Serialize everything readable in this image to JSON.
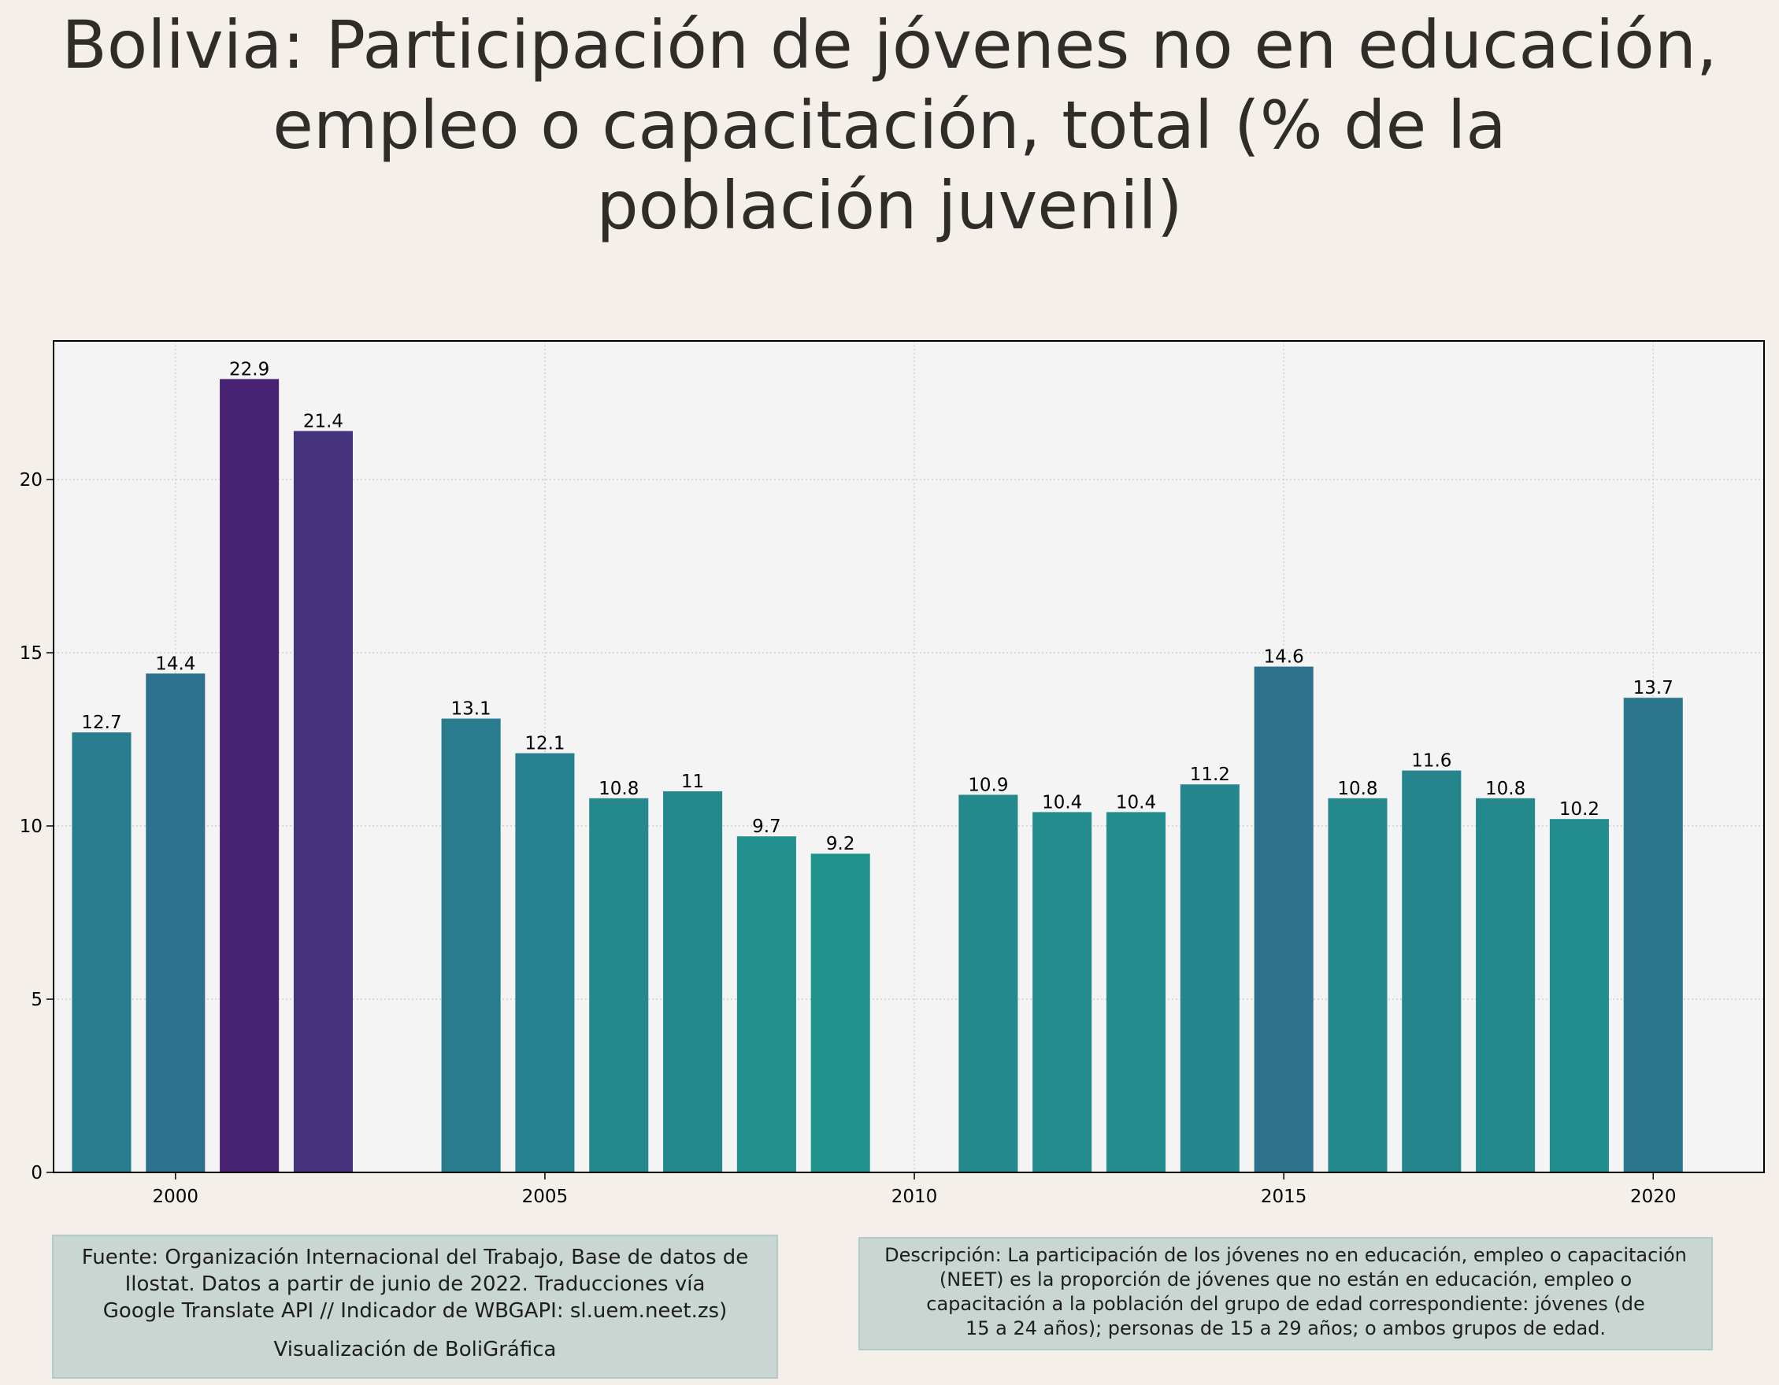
{
  "title_lines": [
    "Bolivia:  Participación de jóvenes no en educación,",
    "empleo o capacitación, total (% de la",
    "población juvenil)"
  ],
  "chart_data": {
    "type": "bar",
    "title": "Bolivia:  Participación de jóvenes no en educación, empleo o capacitación, total (% de la población juvenil)",
    "xlabel": "",
    "ylabel": "",
    "x": [
      1999,
      2000,
      2001,
      2002,
      2004,
      2005,
      2006,
      2007,
      2008,
      2009,
      2011,
      2012,
      2013,
      2014,
      2015,
      2016,
      2017,
      2018,
      2019,
      2020
    ],
    "values": [
      12.7,
      14.4,
      22.9,
      21.4,
      13.1,
      12.1,
      10.8,
      11,
      9.7,
      9.2,
      10.9,
      10.4,
      10.4,
      11.2,
      14.6,
      10.8,
      11.6,
      10.8,
      10.2,
      13.7
    ],
    "value_labels": [
      "12.7",
      "14.4",
      "22.9",
      "21.4",
      "13.1",
      "12.1",
      "10.8",
      "11",
      "9.7",
      "9.2",
      "10.9",
      "10.4",
      "10.4",
      "11.2",
      "14.6",
      "10.8",
      "11.6",
      "10.8",
      "10.2",
      "13.7"
    ],
    "xlim": [
      1998.35,
      2021.5
    ],
    "ylim": [
      0,
      24
    ],
    "x_ticks": [
      2000,
      2005,
      2010,
      2015,
      2020
    ],
    "y_ticks": [
      0,
      5,
      10,
      15,
      20
    ],
    "grid": true,
    "colormap": "viridis-like (purple for high values, teal for low values)",
    "colors": {
      "background": "#f4f0e9",
      "plot_background": "#f4f4f4",
      "grid": "#c8c8c8",
      "axis": "#000000"
    }
  },
  "source_note": {
    "lines": [
      "Fuente: Organización Internacional del Trabajo, Base de datos de",
      "Ilostat. Datos a partir de junio de 2022. Traducciones vía",
      "Google Translate API // Indicador de WBGAPI: sl.uem.neet.zs)"
    ],
    "credit": "Visualización de BoliGráfica"
  },
  "description_note": {
    "lines": [
      "Descripción: La participación de los jóvenes no en educación, empleo o capacitación",
      "(NEET) es la proporción de jóvenes que no están en educación, empleo o",
      "capacitación a la población del grupo de edad correspondiente: jóvenes (de",
      "15 a 24 años); personas de 15 a 29 años; o ambos grupos de edad."
    ]
  }
}
